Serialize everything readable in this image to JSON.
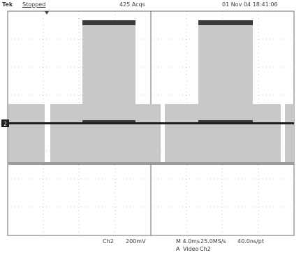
{
  "status": {
    "brand": "Tek",
    "state": "Stopped",
    "acquisitions": "425 Acqs",
    "timestamp": "01 Nov 04 18:41:06"
  },
  "channel_marker": "2",
  "readout": {
    "channel": "Ch2",
    "volts_per_div": "200mV",
    "timebase": "M 4.0ms",
    "sample_rate": "25.0MS/s",
    "resolution": "40.0ns/pt",
    "trigger_mode": "A",
    "trigger_type": "Video",
    "trigger_source": "Ch2"
  },
  "colors": {
    "grid": "#6e6e6e",
    "trace_fill": "#c8c8c8",
    "trace_line": "#9c9c9c",
    "reference": "#1e1e1e"
  }
}
